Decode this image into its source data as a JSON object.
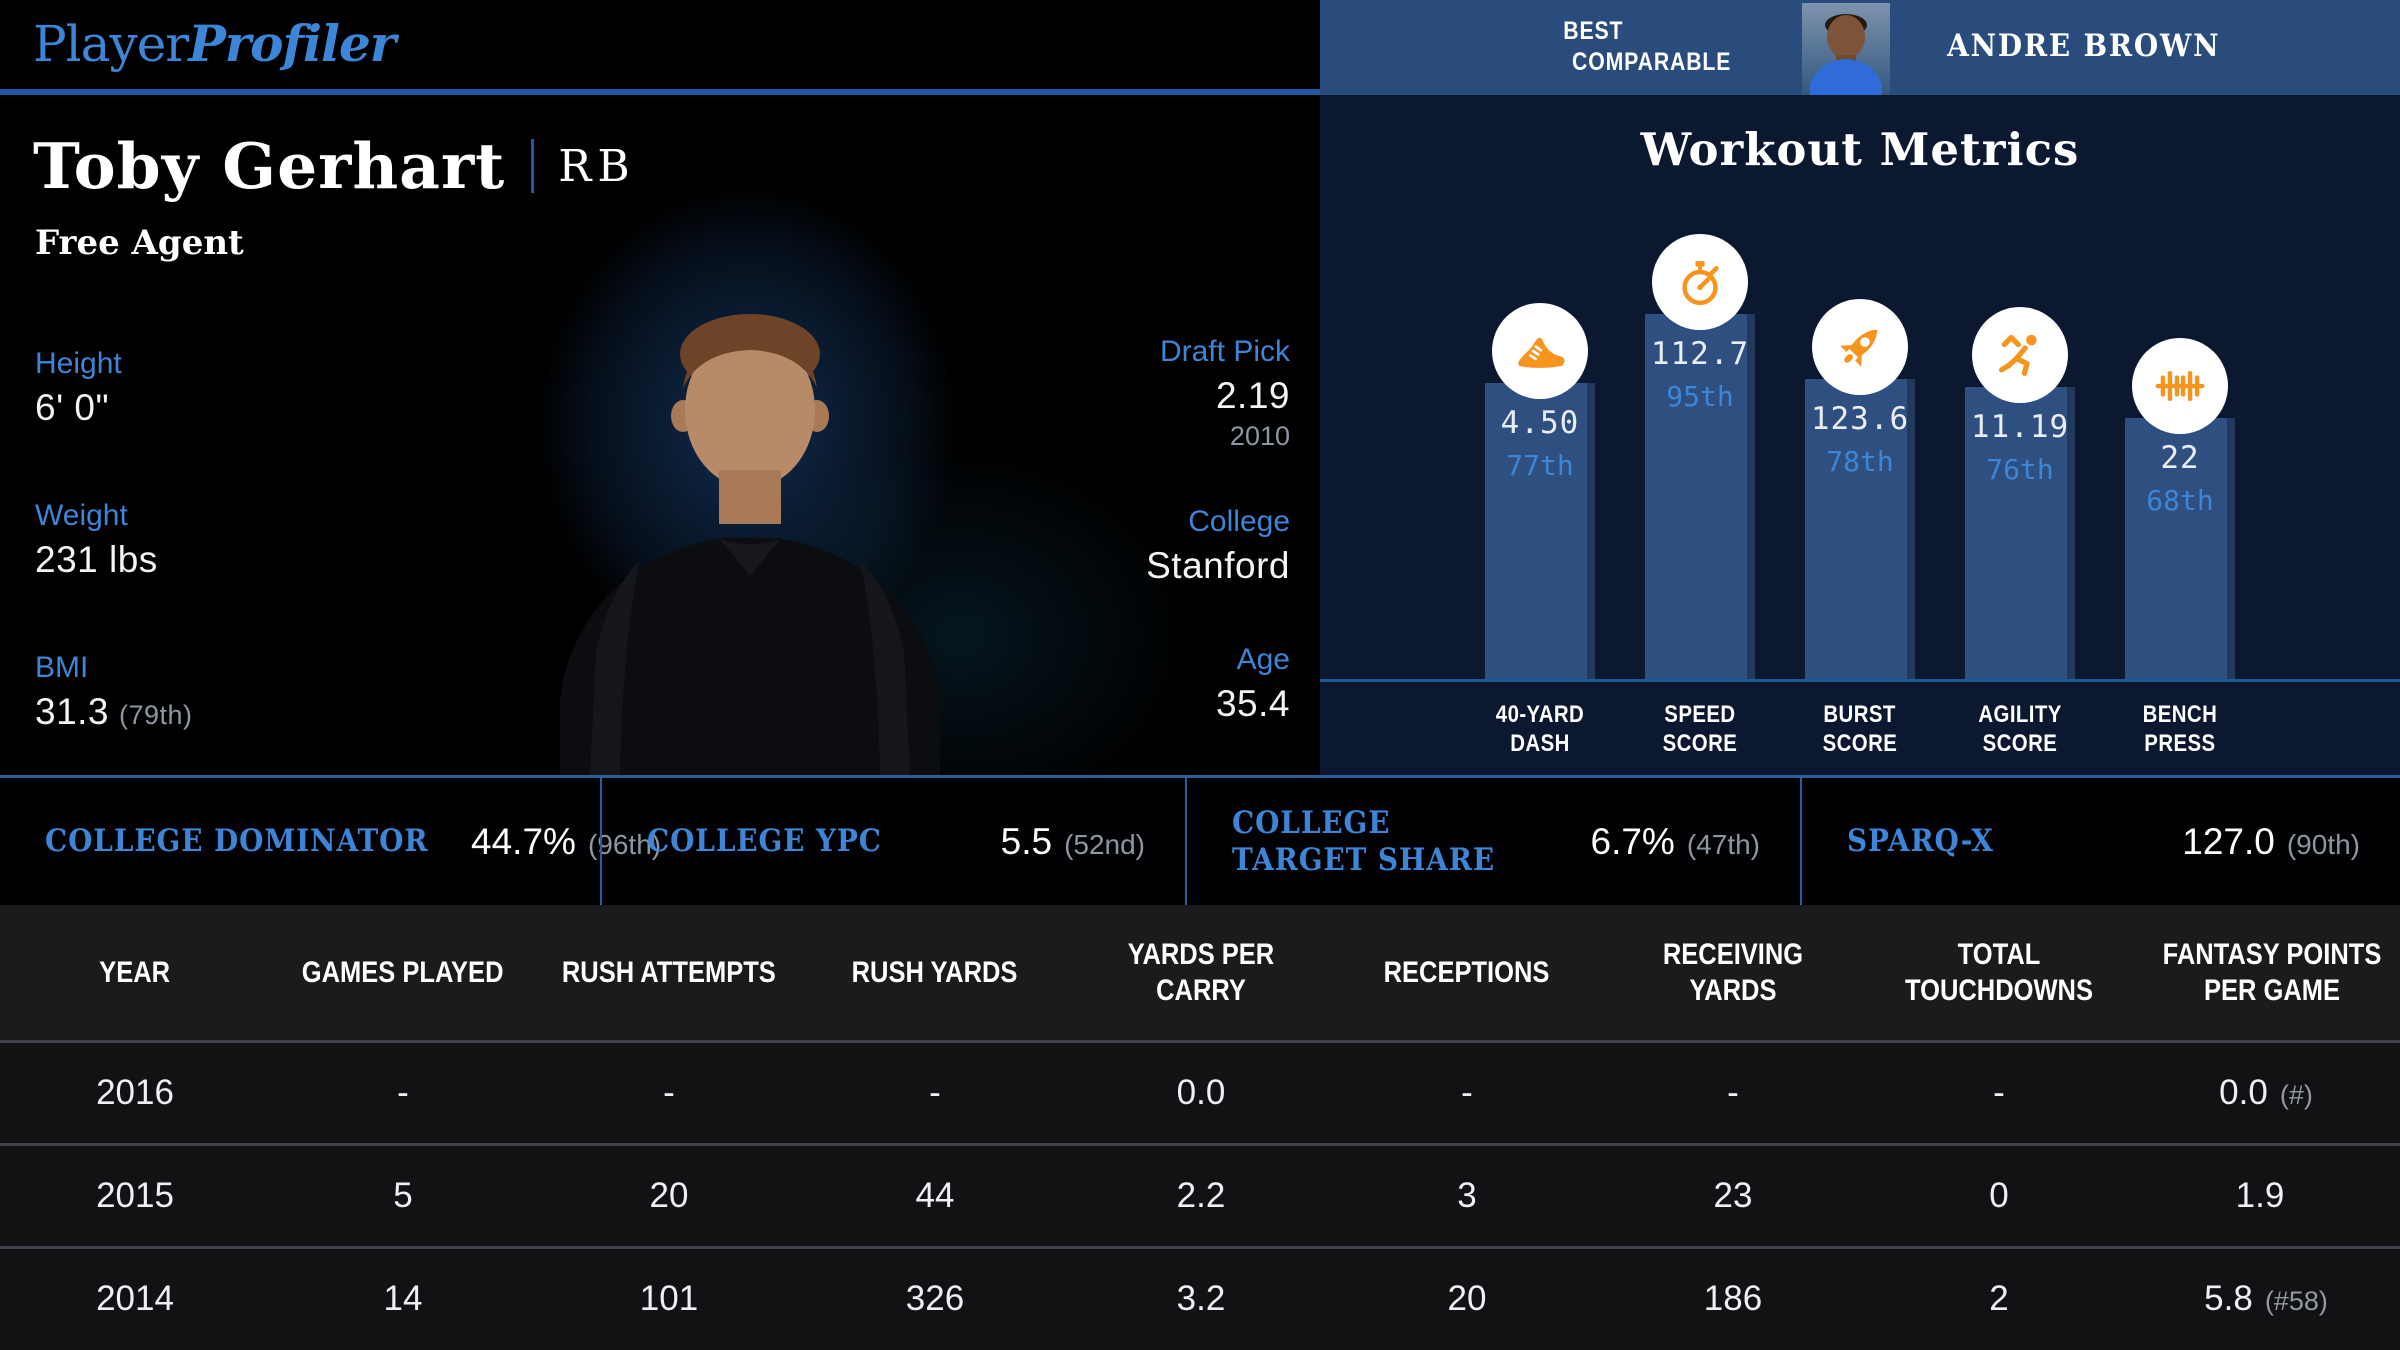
{
  "brand": {
    "name_regular": "Player",
    "name_italic": "Profiler"
  },
  "comparable": {
    "heading_line1": "BEST",
    "heading_line2": "COMPARABLE",
    "player": "ANDRE BROWN"
  },
  "player": {
    "name": "Toby Gerhart",
    "position": "RB",
    "status": "Free Agent"
  },
  "bio_left": [
    {
      "label": "Height",
      "value": "6' 0\"",
      "note": ""
    },
    {
      "label": "Weight",
      "value": "231 lbs",
      "note": ""
    },
    {
      "label": "BMI",
      "value": "31.3",
      "note": "(79th)"
    }
  ],
  "bio_right": [
    {
      "label": "Draft Pick",
      "value": "2.19",
      "note": "2010"
    },
    {
      "label": "College",
      "value": "Stanford",
      "note": ""
    },
    {
      "label": "Age",
      "value": "35.4",
      "note": ""
    }
  ],
  "workout": {
    "title": "Workout Metrics",
    "bars": [
      {
        "icon": "shoe-icon",
        "value": "4.50",
        "percentile": "77th",
        "percentile_rank": 77,
        "label_line1": "40-YARD",
        "label_line2": "DASH"
      },
      {
        "icon": "stopwatch-icon",
        "value": "112.7",
        "percentile": "95th",
        "percentile_rank": 95,
        "label_line1": "SPEED",
        "label_line2": "SCORE"
      },
      {
        "icon": "rocket-icon",
        "value": "123.6",
        "percentile": "78th",
        "percentile_rank": 78,
        "label_line1": "BURST",
        "label_line2": "SCORE"
      },
      {
        "icon": "runner-icon",
        "value": "11.19",
        "percentile": "76th",
        "percentile_rank": 76,
        "label_line1": "AGILITY",
        "label_line2": "SCORE"
      },
      {
        "icon": "barbell-icon",
        "value": "22",
        "percentile": "68th",
        "percentile_rank": 68,
        "label_line1": "BENCH",
        "label_line2": "PRESS"
      }
    ]
  },
  "chart_data": {
    "type": "bar",
    "title": "Workout Metrics",
    "categories": [
      "40-Yard Dash",
      "Speed Score",
      "Burst Score",
      "Agility Score",
      "Bench Press"
    ],
    "values": [
      4.5,
      112.7,
      123.6,
      11.19,
      22
    ],
    "percentiles": [
      77,
      95,
      78,
      76,
      68
    ],
    "ylim": [
      0,
      100
    ],
    "note": "bar heights encode percentile rank (0-100); value labels shown inside bars"
  },
  "college_stats": [
    {
      "label": "COLLEGE DOMINATOR",
      "value": "44.7%",
      "note": "(96th)"
    },
    {
      "label": "COLLEGE YPC",
      "value": "5.5",
      "note": "(52nd)"
    },
    {
      "label": "COLLEGE TARGET SHARE",
      "value": "6.7%",
      "note": "(47th)"
    },
    {
      "label": "SPARQ-X",
      "value": "127.0",
      "note": "(90th)"
    }
  ],
  "table": {
    "columns": [
      "YEAR",
      "GAMES PLAYED",
      "RUSH ATTEMPTS",
      "RUSH YARDS",
      "YARDS PER CARRY",
      "RECEPTIONS",
      "RECEIVING YARDS",
      "TOTAL TOUCHDOWNS",
      "FANTASY POINTS PER GAME"
    ],
    "rows": [
      {
        "year": "2016",
        "games_played": "-",
        "rush_attempts": "-",
        "rush_yards": "-",
        "yards_per_carry": "0.0",
        "receptions": "-",
        "receiving_yards": "-",
        "total_touchdowns": "-",
        "fppg": "0.0",
        "fppg_note": "(#)"
      },
      {
        "year": "2015",
        "games_played": "5",
        "rush_attempts": "20",
        "rush_yards": "44",
        "yards_per_carry": "2.2",
        "receptions": "3",
        "receiving_yards": "23",
        "total_touchdowns": "0",
        "fppg": "1.9",
        "fppg_note": ""
      },
      {
        "year": "2014",
        "games_played": "14",
        "rush_attempts": "101",
        "rush_yards": "326",
        "yards_per_carry": "3.2",
        "receptions": "20",
        "receiving_yards": "186",
        "total_touchdowns": "2",
        "fppg": "5.8",
        "fppg_note": "(#58)"
      }
    ]
  },
  "colors": {
    "accent_blue": "#3d85d6",
    "band_blue": "#2a4c7d",
    "panel_navy": "#0c1830",
    "bar_fill": "#2e4f7f",
    "axis_blue": "#1e5a8f",
    "orange": "#f7941e",
    "muted_gray": "#8e96a3"
  }
}
